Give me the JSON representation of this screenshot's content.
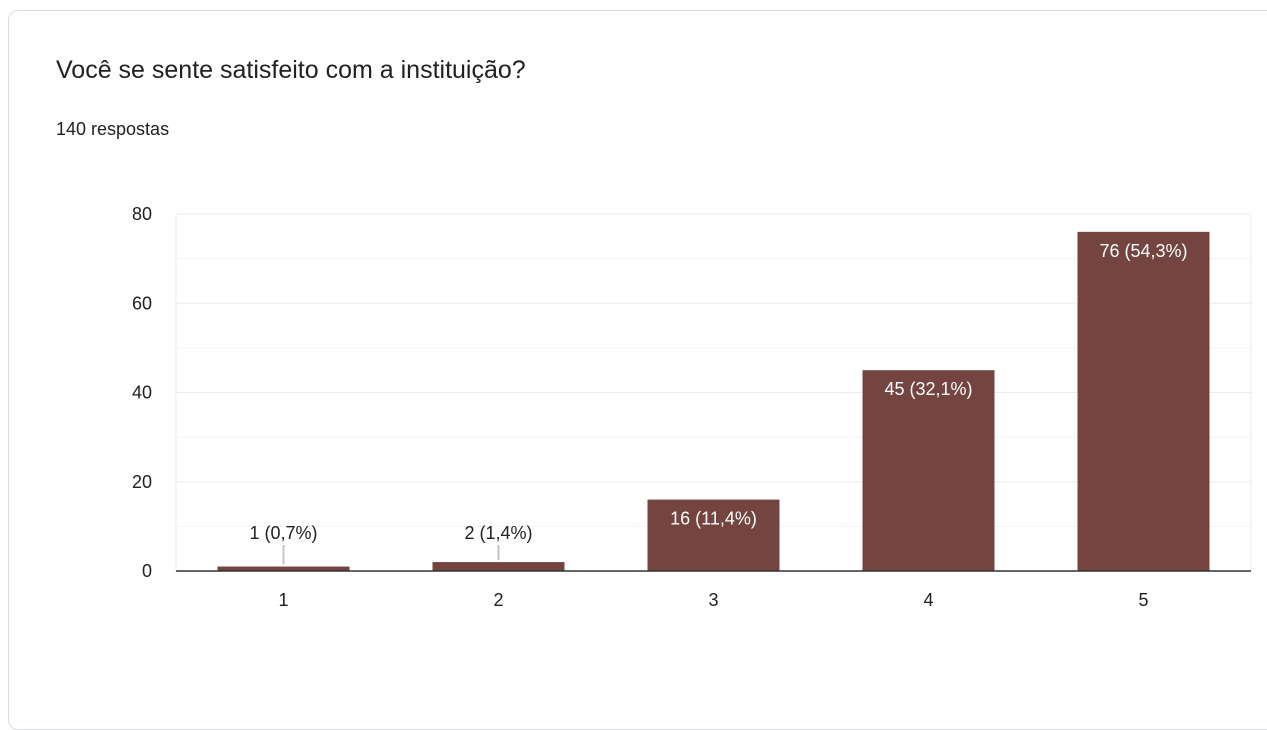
{
  "question": {
    "title": "Você se sente satisfeito com a instituição?",
    "responses_label": "140 respostas"
  },
  "colors": {
    "bar": "#744440",
    "inside_label": "#ffffff",
    "outside_label": "#202124",
    "axis_text": "#202124",
    "gridline": "#ebebeb",
    "axis_line": "#333333",
    "leader_line": "#c4c4c4"
  },
  "chart_data": {
    "type": "bar",
    "categories": [
      "1",
      "2",
      "3",
      "4",
      "5"
    ],
    "values": [
      1,
      2,
      16,
      45,
      76
    ],
    "data_labels": [
      "1 (0,7%)",
      "2 (1,4%)",
      "16 (11,4%)",
      "45 (32,1%)",
      "76 (54,3%)"
    ],
    "y_ticks": [
      0,
      20,
      40,
      60,
      80
    ],
    "ylim": [
      0,
      80
    ],
    "minor_grid_step": 10,
    "grid": true,
    "legend": "none"
  }
}
